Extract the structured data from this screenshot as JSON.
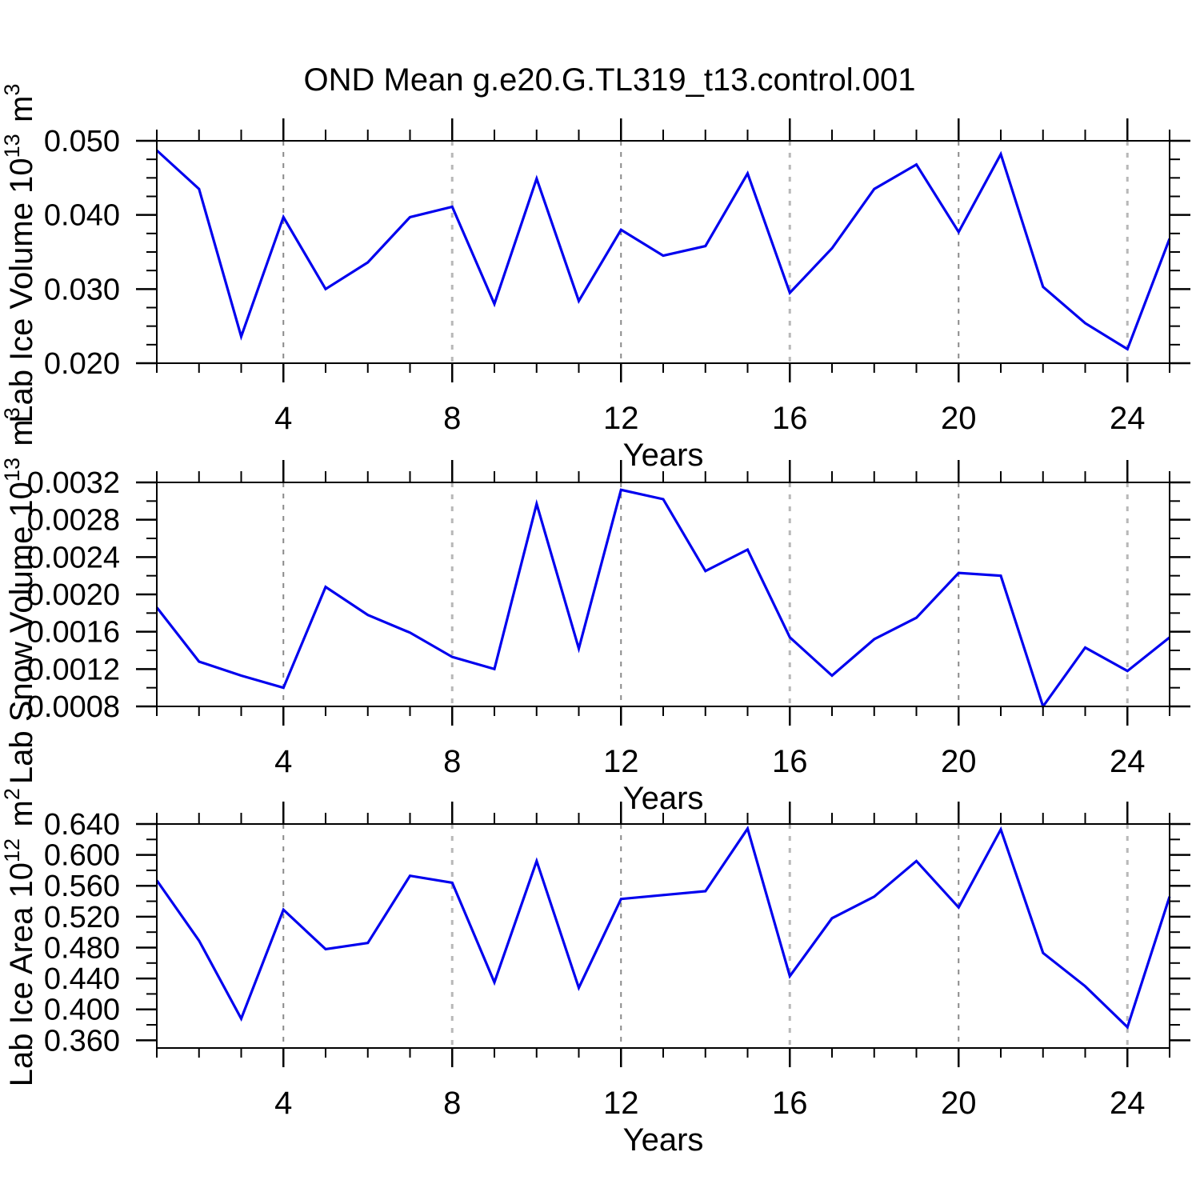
{
  "title": "OND Mean g.e20.G.TL319_t13.control.001",
  "colors": {
    "line": "#0000EE",
    "grid_dark": "#8A8A8A",
    "grid_light": "#B8B8B8",
    "axis": "#000000",
    "text": "#000000",
    "background": "#FFFFFF"
  },
  "x_axis": {
    "label": "Years",
    "min": 1,
    "max": 25,
    "major_ticks": [
      4,
      8,
      12,
      16,
      20,
      24
    ],
    "minor_step": 1,
    "gridline_years": [
      4,
      8,
      12,
      16,
      20,
      24
    ]
  },
  "chart_data": [
    {
      "type": "line",
      "name": "lab-ice-volume",
      "ylabel_plain": "Lab Ice Volume 10^13 m^3",
      "ylabel_parts": [
        {
          "text": "Lab Ice Volume 10"
        },
        {
          "sup": "13"
        },
        {
          "text": " m"
        },
        {
          "sup": "3"
        }
      ],
      "xlabel": "Years",
      "ylim": [
        0.02,
        0.05
      ],
      "ytick_values": [
        0.02,
        0.03,
        0.04,
        0.05
      ],
      "ytick_labels": [
        "0.020",
        "0.030",
        "0.040",
        "0.050"
      ],
      "yminor_step": 0.0025,
      "x": [
        1,
        2,
        3,
        4,
        5,
        6,
        7,
        8,
        9,
        10,
        11,
        12,
        13,
        14,
        15,
        16,
        17,
        18,
        19,
        20,
        21,
        22,
        23,
        24,
        25
      ],
      "values": [
        0.0487,
        0.0435,
        0.0236,
        0.0397,
        0.03,
        0.0336,
        0.0397,
        0.0411,
        0.028,
        0.0449,
        0.0284,
        0.038,
        0.0345,
        0.0358,
        0.0456,
        0.0295,
        0.0355,
        0.0435,
        0.0468,
        0.0377,
        0.0482,
        0.0303,
        0.0254,
        0.0219,
        0.0368
      ]
    },
    {
      "type": "line",
      "name": "lab-snow-volume",
      "ylabel_plain": "Lab Snow Volume 10^13 m^3",
      "ylabel_parts": [
        {
          "text": "Lab Snow Volume 10"
        },
        {
          "sup": "13"
        },
        {
          "text": " m"
        },
        {
          "sup": "3"
        }
      ],
      "xlabel": "Years",
      "ylim": [
        0.0008,
        0.0032
      ],
      "ytick_values": [
        0.0008,
        0.0012,
        0.0016,
        0.002,
        0.0024,
        0.0028,
        0.0032
      ],
      "ytick_labels": [
        "0.0008",
        "0.0012",
        "0.0016",
        "0.0020",
        "0.0024",
        "0.0028",
        "0.0032"
      ],
      "yminor_step": 0.0002,
      "x": [
        1,
        2,
        3,
        4,
        5,
        6,
        7,
        8,
        9,
        10,
        11,
        12,
        13,
        14,
        15,
        16,
        17,
        18,
        19,
        20,
        21,
        22,
        23,
        24,
        25
      ],
      "values": [
        0.00186,
        0.00128,
        0.00113,
        0.001,
        0.00208,
        0.00178,
        0.00159,
        0.00133,
        0.0012,
        0.00297,
        0.00142,
        0.00312,
        0.00302,
        0.00225,
        0.00248,
        0.00154,
        0.00113,
        0.00152,
        0.00175,
        0.00223,
        0.0022,
        0.0008,
        0.00143,
        0.00118,
        0.00154
      ]
    },
    {
      "type": "line",
      "name": "lab-ice-area",
      "ylabel_plain": "Lab Ice Area 10^12 m^2",
      "ylabel_parts": [
        {
          "text": "Lab Ice Area 10"
        },
        {
          "sup": "12"
        },
        {
          "text": " m"
        },
        {
          "sup": "2"
        }
      ],
      "xlabel": "Years",
      "ylim": [
        0.35,
        0.64
      ],
      "ytick_values": [
        0.36,
        0.4,
        0.44,
        0.48,
        0.52,
        0.56,
        0.6,
        0.64
      ],
      "ytick_labels": [
        "0.360",
        "0.400",
        "0.440",
        "0.480",
        "0.520",
        "0.560",
        "0.600",
        "0.640"
      ],
      "yminor_step": 0.02,
      "x": [
        1,
        2,
        3,
        4,
        5,
        6,
        7,
        8,
        9,
        10,
        11,
        12,
        13,
        14,
        15,
        16,
        17,
        18,
        19,
        20,
        21,
        22,
        23,
        24,
        25
      ],
      "values": [
        0.567,
        0.489,
        0.388,
        0.529,
        0.478,
        0.486,
        0.573,
        0.564,
        0.435,
        0.592,
        0.428,
        0.543,
        0.548,
        0.553,
        0.634,
        0.443,
        0.518,
        0.546,
        0.592,
        0.532,
        0.633,
        0.473,
        0.43,
        0.377,
        0.546
      ]
    }
  ]
}
